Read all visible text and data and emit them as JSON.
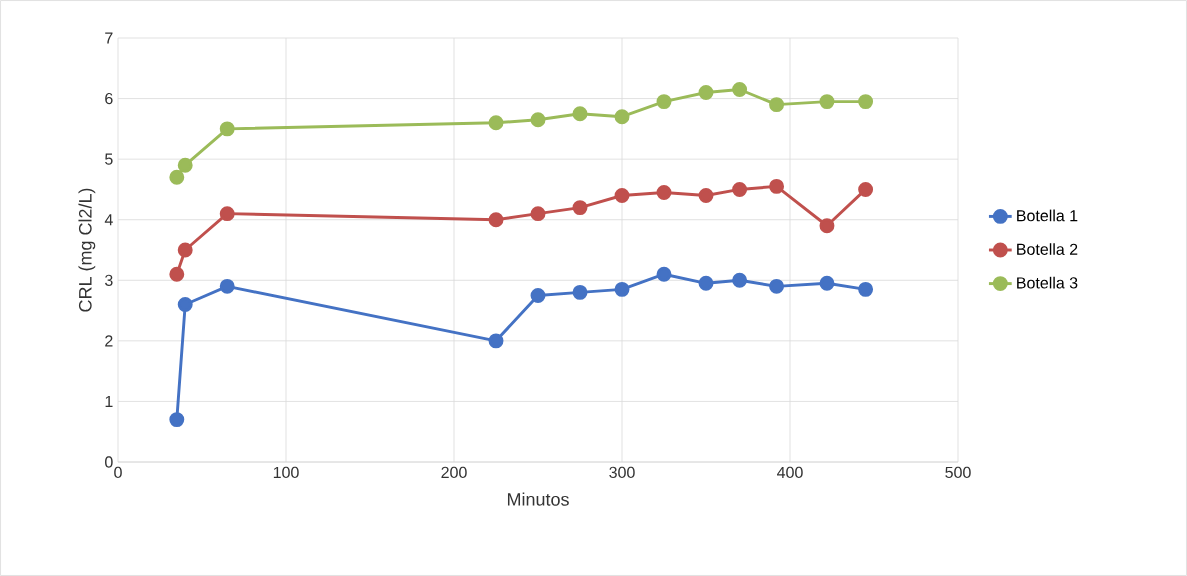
{
  "chart_data": {
    "type": "line",
    "xlabel": "Minutos",
    "ylabel": "CRL (mg Cl2/L)",
    "x": [
      35,
      40,
      65,
      225,
      250,
      275,
      300,
      325,
      350,
      370,
      392,
      422,
      445
    ],
    "series": [
      {
        "name": "Botella 1",
        "color": "#4472c4",
        "values": [
          0.7,
          2.6,
          2.9,
          2.0,
          2.75,
          2.8,
          2.85,
          3.1,
          2.95,
          3.0,
          2.9,
          2.95,
          2.85
        ]
      },
      {
        "name": "Botella 2",
        "color": "#c0504d",
        "values": [
          3.1,
          3.5,
          4.1,
          4.0,
          4.1,
          4.2,
          4.4,
          4.45,
          4.4,
          4.5,
          4.55,
          3.9,
          4.5
        ]
      },
      {
        "name": "Botella 3",
        "color": "#9bbb59",
        "values": [
          4.7,
          4.9,
          5.5,
          5.6,
          5.65,
          5.75,
          5.7,
          5.95,
          6.1,
          6.15,
          5.9,
          5.95,
          5.95
        ]
      }
    ],
    "xlim": [
      0,
      500
    ],
    "ylim": [
      0,
      7
    ],
    "xticks": [
      0,
      100,
      200,
      300,
      400,
      500
    ],
    "yticks": [
      0,
      1,
      2,
      3,
      4,
      5,
      6,
      7
    ],
    "grid": true,
    "legend": "right",
    "marker": "circle",
    "line_style": "solid"
  }
}
